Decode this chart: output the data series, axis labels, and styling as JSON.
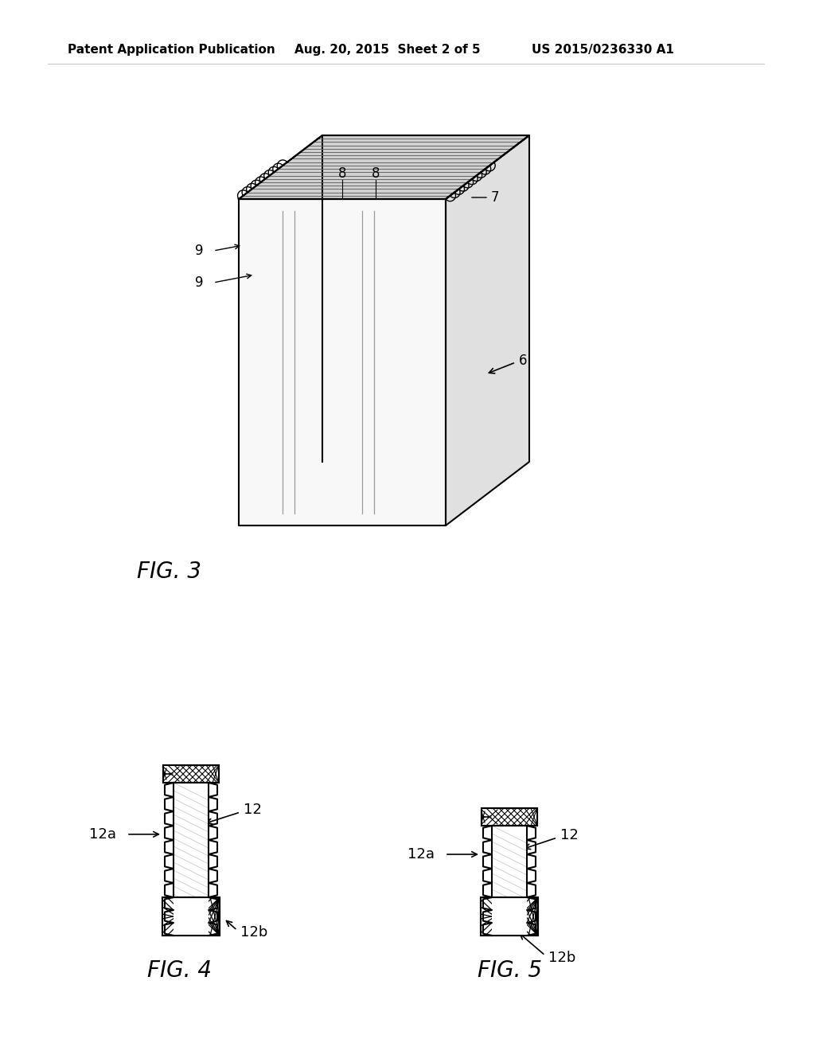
{
  "background_color": "#ffffff",
  "header_left": "Patent Application Publication",
  "header_center": "Aug. 20, 2015  Sheet 2 of 5",
  "header_right": "US 2015/0236330 A1",
  "fig3_label": "FIG. 3",
  "fig4_label": "FIG. 4",
  "fig5_label": "FIG. 5",
  "line_color": "#000000",
  "label_fontsize": 12,
  "figlabel_fontsize": 20,
  "header_fontsize": 11
}
